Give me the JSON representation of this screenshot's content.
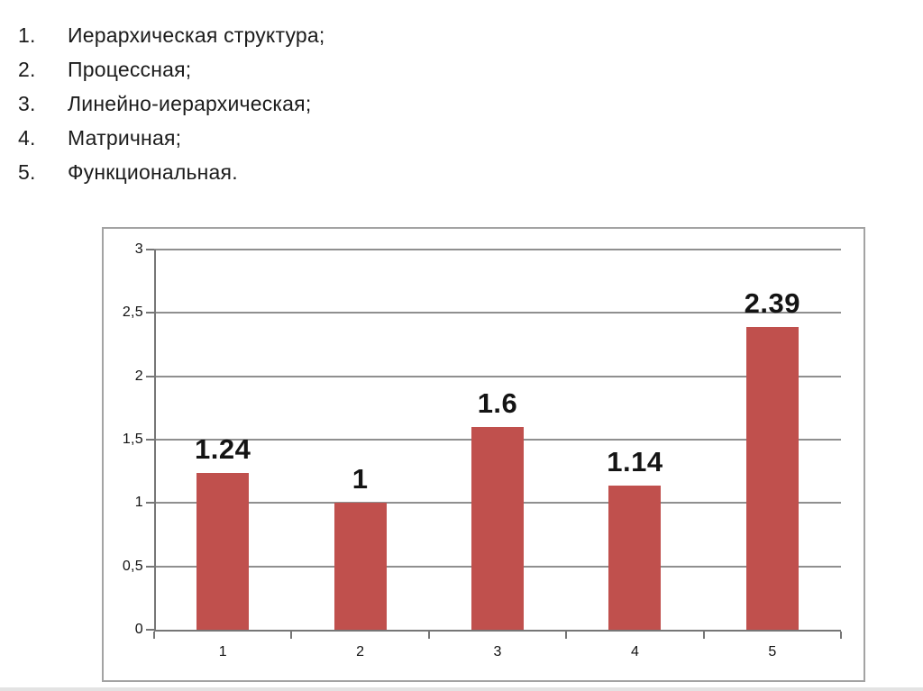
{
  "page": {
    "background_color": "#ffffff",
    "bottom_strip_color": "#e3e3e3"
  },
  "list": {
    "items": [
      {
        "number": "1.",
        "text": "Иерархическая структура;"
      },
      {
        "number": "2.",
        "text": "Процессная;"
      },
      {
        "number": "3.",
        "text": "Линейно-иерархическая;"
      },
      {
        "number": "4.",
        "text": "Матричная;"
      },
      {
        "number": "5.",
        "text": "Функциональная."
      }
    ]
  },
  "chart_data": {
    "type": "bar",
    "title": "",
    "xlabel": "",
    "ylabel": "",
    "categories": [
      "1",
      "2",
      "3",
      "4",
      "5"
    ],
    "values": [
      1.24,
      1,
      1.6,
      1.14,
      2.39
    ],
    "data_labels": [
      "1.24",
      "1",
      "1.6",
      "1.14",
      "2.39"
    ],
    "y_ticks": [
      "3",
      "2,5",
      "2",
      "1,5",
      "1",
      "0,5",
      "0"
    ],
    "y_tick_values": [
      3,
      2.5,
      2,
      1.5,
      1,
      0.5,
      0
    ],
    "ylim": [
      0,
      3
    ],
    "grid": true,
    "legend": "none",
    "bar_color": "#c0504d",
    "gridline_color": "#8f8f8f",
    "axis_color": "#767676",
    "frame_border_color": "#a3a3a3"
  }
}
